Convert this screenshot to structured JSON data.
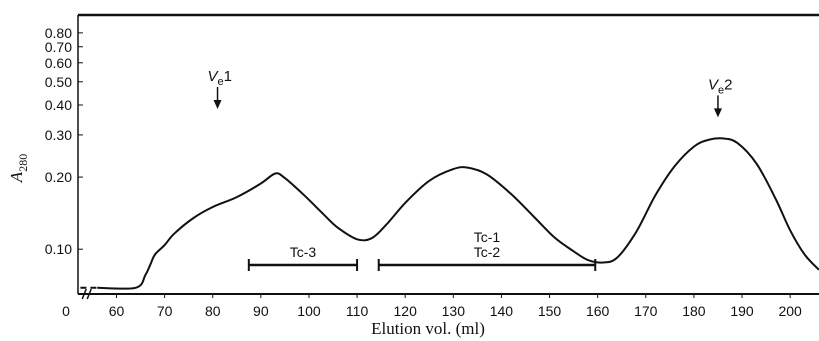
{
  "chart_data": {
    "type": "line",
    "title": "",
    "xlabel": "Elution vol. (ml)",
    "ylabel": "A",
    "ylabel_subscript": "280",
    "yscale": "log",
    "xlim": [
      52,
      206
    ],
    "ylim": [
      0.065,
      0.95
    ],
    "x_ticks": [
      60,
      70,
      80,
      90,
      100,
      110,
      120,
      130,
      140,
      150,
      160,
      170,
      180,
      190,
      200
    ],
    "x_origin_label": "0",
    "y_ticks": [
      {
        "value": 0.1,
        "label": "0.10"
      },
      {
        "value": 0.2,
        "label": "0.20"
      },
      {
        "value": 0.3,
        "label": "0.30"
      },
      {
        "value": 0.4,
        "label": "0.40"
      },
      {
        "value": 0.5,
        "label": "0.50"
      },
      {
        "value": 0.6,
        "label": "0.60"
      },
      {
        "value": 0.7,
        "label": "0.70"
      },
      {
        "value": 0.8,
        "label": "0.80"
      }
    ],
    "series": [
      {
        "values_xy": [
          [
            56,
            0.069
          ],
          [
            64,
            0.069
          ],
          [
            66,
            0.078
          ],
          [
            67,
            0.086
          ],
          [
            68,
            0.095
          ],
          [
            70,
            0.104
          ],
          [
            72,
            0.116
          ],
          [
            76,
            0.135
          ],
          [
            80,
            0.15
          ],
          [
            85,
            0.165
          ],
          [
            90,
            0.188
          ],
          [
            93,
            0.207
          ],
          [
            95,
            0.198
          ],
          [
            99,
            0.168
          ],
          [
            103,
            0.14
          ],
          [
            106,
            0.123
          ],
          [
            110,
            0.11
          ],
          [
            113,
            0.111
          ],
          [
            116,
            0.126
          ],
          [
            120,
            0.156
          ],
          [
            125,
            0.193
          ],
          [
            130,
            0.216
          ],
          [
            133,
            0.219
          ],
          [
            137,
            0.205
          ],
          [
            142,
            0.17
          ],
          [
            147,
            0.135
          ],
          [
            151,
            0.112
          ],
          [
            155,
            0.098
          ],
          [
            158,
            0.09
          ],
          [
            161,
            0.088
          ],
          [
            164,
            0.092
          ],
          [
            168,
            0.118
          ],
          [
            172,
            0.168
          ],
          [
            176,
            0.222
          ],
          [
            180,
            0.268
          ],
          [
            183,
            0.286
          ],
          [
            186,
            0.29
          ],
          [
            189,
            0.278
          ],
          [
            193,
            0.228
          ],
          [
            197,
            0.162
          ],
          [
            200,
            0.12
          ],
          [
            203,
            0.095
          ],
          [
            206,
            0.082
          ]
        ]
      }
    ],
    "dashed_lead_in": [
      [
        52.5,
        0.069
      ],
      [
        56,
        0.069
      ]
    ],
    "annotations": [
      {
        "text": "V",
        "subscript": "e",
        "suffix": "1",
        "x": 81,
        "y_tip": 0.385
      },
      {
        "text": "V",
        "subscript": "e",
        "suffix": "2",
        "x": 185,
        "y_tip": 0.355
      }
    ],
    "fractions": [
      {
        "labels": [
          "Tc-3"
        ],
        "x_start": 87.5,
        "x_end": 110
      },
      {
        "labels": [
          "Tc-1",
          "Tc-2"
        ],
        "x_start": 114.5,
        "x_end": 159.5
      }
    ],
    "grid": false,
    "axis_break_marker": "//"
  }
}
